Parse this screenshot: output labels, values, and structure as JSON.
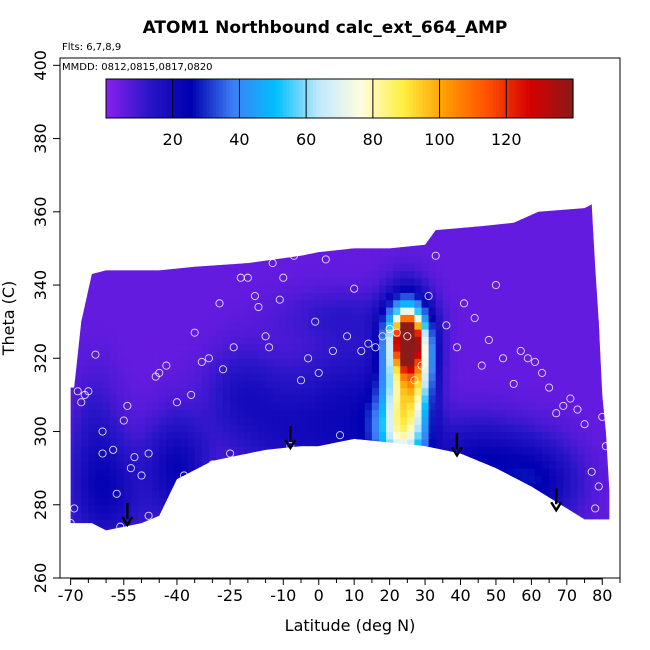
{
  "title": "ATOM1 Northbound calc_ext_664_AMP",
  "notes": {
    "flights": "Flts: 6,7,8,9",
    "dates": "MMDD: 0812,0815,0817,0820"
  },
  "colors": {
    "background_field": "#8a1fef",
    "colorbar": [
      "#8a1fef",
      "#2a16c8",
      "#0000b0",
      "#3d7ff5",
      "#00bfff",
      "#bfe8ff",
      "#fffde0",
      "#ffef40",
      "#ff9a00",
      "#ff5000",
      "#d40000",
      "#8b1a1a"
    ]
  },
  "chart_data": {
    "type": "heatmap",
    "title": "ATOM1 Northbound calc_ext_664_AMP",
    "xlabel": "Latitude (deg N)",
    "ylabel": "Theta (C)",
    "xlim": [
      -73,
      85
    ],
    "ylim": [
      260,
      402
    ],
    "x_ticks": [
      -70,
      -55,
      -40,
      -25,
      -10,
      0,
      10,
      20,
      30,
      40,
      50,
      60,
      70,
      80
    ],
    "x_tick_labels": [
      "-70",
      "-55",
      "-40",
      "-25",
      "-10",
      "0",
      "10",
      "20",
      "30",
      "40",
      "50",
      "60",
      "70",
      "80"
    ],
    "x_minor_ticks": [
      -65,
      -60,
      -50,
      -45,
      -35,
      -30,
      -20,
      -15,
      -5,
      5,
      15,
      25,
      35,
      45,
      55,
      65,
      75,
      85
    ],
    "y_ticks": [
      260,
      280,
      300,
      320,
      340,
      360,
      380,
      400
    ],
    "y_tick_labels": [
      "260",
      "280",
      "300",
      "320",
      "340",
      "360",
      "380",
      "400"
    ],
    "colorbar": {
      "range": [
        0,
        140
      ],
      "ticks": [
        20,
        40,
        60,
        80,
        100,
        120
      ],
      "tick_labels": [
        "20",
        "40",
        "60",
        "80",
        "100",
        "120"
      ]
    },
    "arrows_x": [
      -54,
      -8,
      39,
      67
    ],
    "upper_boundary": [
      [
        -70,
        312
      ],
      [
        -69,
        312
      ],
      [
        -67,
        330
      ],
      [
        -64,
        343
      ],
      [
        -60,
        344
      ],
      [
        -45,
        344
      ],
      [
        -35,
        345
      ],
      [
        -20,
        346
      ],
      [
        -5,
        348
      ],
      [
        0,
        349
      ],
      [
        10,
        350
      ],
      [
        20,
        350
      ],
      [
        30,
        351
      ],
      [
        33,
        355
      ],
      [
        45,
        356
      ],
      [
        55,
        357
      ],
      [
        62,
        360
      ],
      [
        75,
        361
      ],
      [
        77,
        362
      ],
      [
        78,
        345
      ],
      [
        79,
        330
      ],
      [
        80,
        310
      ],
      [
        81,
        300
      ],
      [
        82,
        284
      ],
      [
        82,
        276
      ]
    ],
    "lower_boundary": [
      [
        -70,
        275
      ],
      [
        -64,
        275
      ],
      [
        -60,
        273
      ],
      [
        -50,
        275
      ],
      [
        -45,
        277
      ],
      [
        -40,
        287
      ],
      [
        -30,
        292
      ],
      [
        -25,
        293
      ],
      [
        -15,
        295
      ],
      [
        -5,
        296
      ],
      [
        0,
        296
      ],
      [
        10,
        298
      ],
      [
        20,
        297
      ],
      [
        30,
        296
      ],
      [
        40,
        294
      ],
      [
        50,
        290
      ],
      [
        60,
        285
      ],
      [
        70,
        279
      ],
      [
        75,
        276
      ],
      [
        82,
        276
      ]
    ],
    "features": [
      {
        "x": 25,
        "y": 325,
        "value": 130,
        "sx": 2.0,
        "sy": 4.0
      },
      {
        "x": 25,
        "y": 325,
        "value": 70,
        "sx": 4.5,
        "sy": 8.0
      },
      {
        "x": 24,
        "y": 310,
        "value": 45,
        "sx": 4.0,
        "sy": 12.0
      },
      {
        "x": 23,
        "y": 300,
        "value": 40,
        "sx": 5.5,
        "sy": 8.0
      },
      {
        "x": 28,
        "y": 316,
        "value": 35,
        "sx": 3.0,
        "sy": 8.0
      },
      {
        "x": -8,
        "y": 300,
        "value": 12,
        "sx": 10.0,
        "sy": 12.0
      },
      {
        "x": 10,
        "y": 305,
        "value": 14,
        "sx": 9.0,
        "sy": 14.0
      },
      {
        "x": -40,
        "y": 290,
        "value": 18,
        "sx": 6.0,
        "sy": 10.0
      },
      {
        "x": -60,
        "y": 283,
        "value": 16,
        "sx": 7.0,
        "sy": 10.0
      },
      {
        "x": 45,
        "y": 292,
        "value": 18,
        "sx": 10.0,
        "sy": 8.0
      },
      {
        "x": 62,
        "y": 286,
        "value": 18,
        "sx": 8.0,
        "sy": 8.0
      },
      {
        "x": -22,
        "y": 310,
        "value": 10,
        "sx": 7.0,
        "sy": 9.0
      },
      {
        "x": -63,
        "y": 300,
        "value": 8,
        "sx": 5.0,
        "sy": 12.0
      },
      {
        "x": 5,
        "y": 332,
        "value": 6,
        "sx": 12.0,
        "sy": 5.0
      }
    ],
    "background_value": 5,
    "points": [
      [
        -68,
        311
      ],
      [
        -67,
        308
      ],
      [
        -66,
        310
      ],
      [
        -65,
        311
      ],
      [
        -63,
        321
      ],
      [
        -61,
        294
      ],
      [
        -61,
        300
      ],
      [
        -58,
        295
      ],
      [
        -57,
        283
      ],
      [
        -55,
        303
      ],
      [
        -54,
        307
      ],
      [
        -53,
        290
      ],
      [
        -52,
        293
      ],
      [
        -50,
        288
      ],
      [
        -48,
        294
      ],
      [
        -46,
        315
      ],
      [
        -45,
        316
      ],
      [
        -43,
        318
      ],
      [
        -40,
        308
      ],
      [
        -38,
        288
      ],
      [
        -36,
        310
      ],
      [
        -35,
        327
      ],
      [
        -33,
        319
      ],
      [
        -31,
        320
      ],
      [
        -30,
        291
      ],
      [
        -28,
        335
      ],
      [
        -27,
        317
      ],
      [
        -25,
        294
      ],
      [
        -24,
        323
      ],
      [
        -22,
        342
      ],
      [
        -20,
        342
      ],
      [
        -18,
        337
      ],
      [
        -17,
        334
      ],
      [
        -15,
        326
      ],
      [
        -14,
        323
      ],
      [
        -13,
        346
      ],
      [
        -11,
        336
      ],
      [
        -10,
        342
      ],
      [
        -8,
        296
      ],
      [
        -7,
        348
      ],
      [
        -5,
        314
      ],
      [
        -3,
        320
      ],
      [
        -1,
        330
      ],
      [
        0,
        316
      ],
      [
        2,
        347
      ],
      [
        4,
        322
      ],
      [
        6,
        299
      ],
      [
        8,
        326
      ],
      [
        10,
        339
      ],
      [
        12,
        322
      ],
      [
        14,
        324
      ],
      [
        16,
        323
      ],
      [
        18,
        326
      ],
      [
        20,
        328
      ],
      [
        22,
        327
      ],
      [
        25,
        326
      ],
      [
        27,
        314
      ],
      [
        29,
        318
      ],
      [
        31,
        337
      ],
      [
        33,
        348
      ],
      [
        36,
        329
      ],
      [
        39,
        323
      ],
      [
        41,
        335
      ],
      [
        44,
        331
      ],
      [
        46,
        318
      ],
      [
        48,
        325
      ],
      [
        50,
        340
      ],
      [
        52,
        320
      ],
      [
        55,
        313
      ],
      [
        57,
        322
      ],
      [
        59,
        320
      ],
      [
        61,
        319
      ],
      [
        63,
        316
      ],
      [
        65,
        312
      ],
      [
        67,
        305
      ],
      [
        69,
        307
      ],
      [
        71,
        309
      ],
      [
        73,
        306
      ],
      [
        75,
        302
      ],
      [
        77,
        289
      ],
      [
        79,
        285
      ],
      [
        80,
        304
      ],
      [
        -70,
        275
      ],
      [
        -69,
        279
      ],
      [
        -56,
        274
      ],
      [
        -48,
        277
      ],
      [
        78,
        279
      ],
      [
        81,
        296
      ]
    ]
  }
}
